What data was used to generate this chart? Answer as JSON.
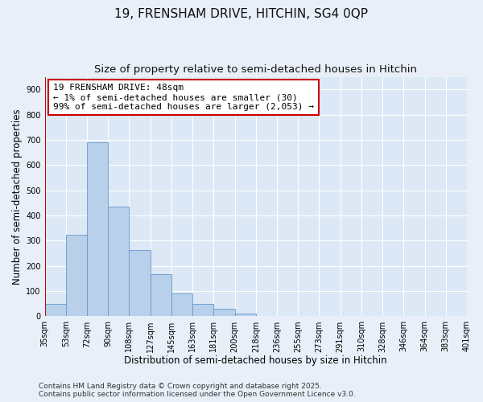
{
  "title": "19, FRENSHAM DRIVE, HITCHIN, SG4 0QP",
  "subtitle": "Size of property relative to semi-detached houses in Hitchin",
  "xlabel": "Distribution of semi-detached houses by size in Hitchin",
  "ylabel": "Number of semi-detached properties",
  "bar_values": [
    50,
    325,
    690,
    435,
    263,
    168,
    92,
    48,
    30,
    10,
    0,
    0,
    0,
    0,
    0,
    0,
    0,
    0,
    0,
    0
  ],
  "categories": [
    "35sqm",
    "53sqm",
    "72sqm",
    "90sqm",
    "108sqm",
    "127sqm",
    "145sqm",
    "163sqm",
    "181sqm",
    "200sqm",
    "218sqm",
    "236sqm",
    "255sqm",
    "273sqm",
    "291sqm",
    "310sqm",
    "328sqm",
    "346sqm",
    "364sqm",
    "383sqm",
    "401sqm"
  ],
  "bar_color": "#b8d0ea",
  "bar_edge_color": "#6699cc",
  "ylim_max": 950,
  "yticks": [
    0,
    100,
    200,
    300,
    400,
    500,
    600,
    700,
    800,
    900
  ],
  "vline_color": "#cc0000",
  "annotation_title": "19 FRENSHAM DRIVE: 48sqm",
  "annotation_line1": "← 1% of semi-detached houses are smaller (30)",
  "annotation_line2": "99% of semi-detached houses are larger (2,053) →",
  "footer1": "Contains HM Land Registry data © Crown copyright and database right 2025.",
  "footer2": "Contains public sector information licensed under the Open Government Licence v3.0.",
  "background_color": "#e8eff8",
  "plot_bg_color": "#dce8f5",
  "grid_color": "#ffffff",
  "title_fontsize": 11,
  "subtitle_fontsize": 9.5,
  "axis_label_fontsize": 8.5,
  "tick_fontsize": 7,
  "annotation_fontsize": 8,
  "footer_fontsize": 6.5
}
